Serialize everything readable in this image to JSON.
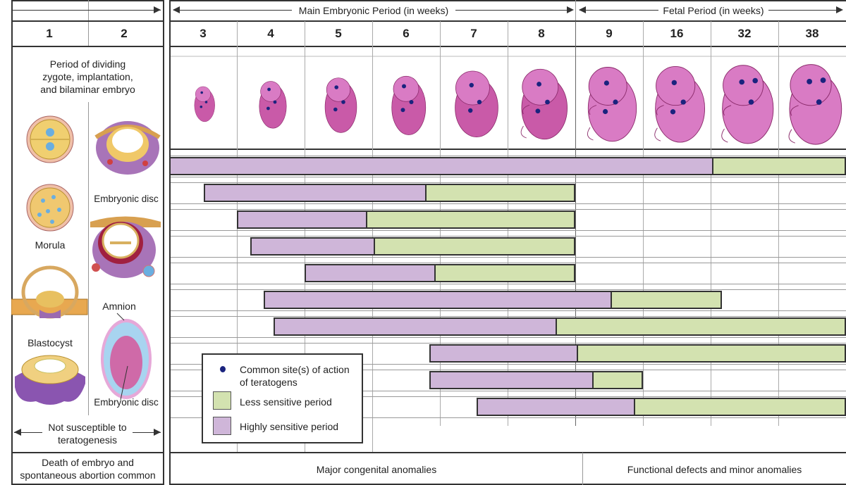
{
  "left_panel": {
    "week_numbers": [
      "1",
      "2"
    ],
    "period_text": [
      "Period of dividing",
      "zygote, implantation,",
      "and bilaminar embryo"
    ],
    "labels": {
      "morula": "Morula",
      "blastocyst": "Blastocyst",
      "embryonic_disc_top": "Embryonic disc",
      "amnion": "Amnion",
      "embryonic_disc_bottom": "Embryonic disc"
    },
    "not_susceptible": [
      "Not susceptible to",
      "teratogenesis"
    ],
    "footer": [
      "Death of embryo and",
      "spontaneous abortion common"
    ]
  },
  "header": {
    "main_embryonic": "Main Embryonic Period (in weeks)",
    "fetal": "Fetal Period (in weeks)",
    "weeks": [
      "3",
      "4",
      "5",
      "6",
      "7",
      "8",
      "9",
      "16",
      "32",
      "38"
    ]
  },
  "embryo_illustration_colors": {
    "body": "#d97bc4",
    "dot": "#1a237e"
  },
  "sensitivity_bars_in_week_columns": [
    {
      "start": 0,
      "boundary": 8,
      "end": 10
    },
    {
      "start": 0.51,
      "boundary": 3.76,
      "end": 6
    },
    {
      "start": 1,
      "boundary": 2.89,
      "end": 6
    },
    {
      "start": 1.2,
      "boundary": 3,
      "end": 6
    },
    {
      "start": 2,
      "boundary": 3.9,
      "end": 6
    },
    {
      "start": 1.4,
      "boundary": 6.5,
      "end": 8.17
    },
    {
      "start": 1.54,
      "boundary": 5.69,
      "end": 10
    },
    {
      "start": 3.84,
      "boundary": 6,
      "end": 10
    },
    {
      "start": 3.84,
      "boundary": 6.23,
      "end": 7
    },
    {
      "start": 4.54,
      "boundary": 6.84,
      "end": 10
    }
  ],
  "legend": {
    "dot_label": [
      "Common site(s) of action",
      "of teratogens"
    ],
    "less_sensitive": "Less sensitive period",
    "highly_sensitive": "Highly sensitive period",
    "colors": {
      "highly_sensitive": "#cfb6d9",
      "less_sensitive": "#d3e2b0",
      "dot": "#1a237e"
    }
  },
  "footer": {
    "major": "Major congenital anomalies",
    "functional": "Functional defects and minor anomalies"
  }
}
